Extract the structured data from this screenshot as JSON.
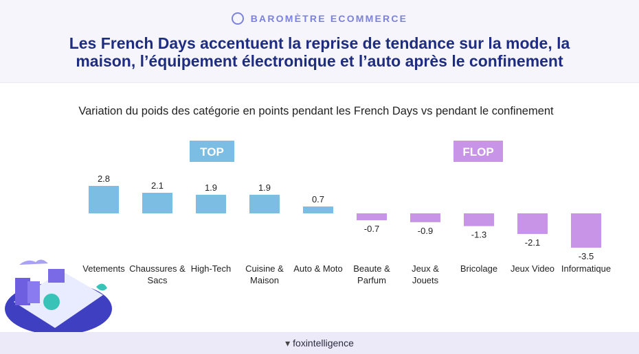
{
  "header": {
    "kicker": "BAROMÈTRE ECOMMERCE",
    "title_lines": [
      "Les French Days accentuent la reprise de tendance sur la mode, la",
      "maison, l’équipement électronique et l’auto après le confinement"
    ]
  },
  "chart_data": {
    "type": "bar",
    "title": "Variation du poids des catégorie en points pendant les French Days vs pendant le confinement",
    "annotations": [
      {
        "text": "TOP",
        "color": "#7bbde3"
      },
      {
        "text": "FLOP",
        "color": "#c894e8"
      }
    ],
    "categories": [
      "Vetements",
      "Chaussures & Sacs",
      "High-Tech",
      "Cuisine & Maison",
      "Auto & Moto",
      "Beaute & Parfum",
      "Jeux & Jouets",
      "Bricolage",
      "Jeux Video",
      "Informatique"
    ],
    "values": [
      2.8,
      2.1,
      1.9,
      1.9,
      0.7,
      -0.7,
      -0.9,
      -1.3,
      -2.1,
      -3.5
    ],
    "colors": [
      "#7bbde3",
      "#7bbde3",
      "#7bbde3",
      "#7bbde3",
      "#7bbde3",
      "#c894e8",
      "#c894e8",
      "#c894e8",
      "#c894e8",
      "#c894e8"
    ]
  },
  "footer": {
    "brand": "foxintelligence"
  }
}
